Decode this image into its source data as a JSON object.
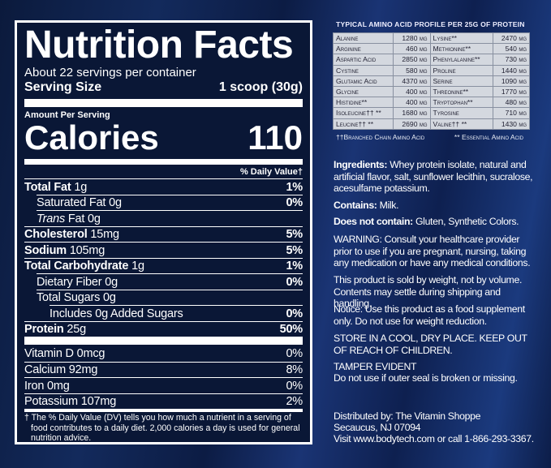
{
  "nutrition": {
    "title": "Nutrition Facts",
    "servings": "About 22 servings per container",
    "serving_size_label": "Serving Size",
    "serving_size_value": "1 scoop (30g)",
    "amount_per_serving": "Amount Per Serving",
    "calories_label": "Calories",
    "calories_value": "110",
    "dv_header": "% Daily Value†",
    "rows": [
      {
        "name": "Total Fat",
        "amount": "1g",
        "dv": "1%"
      },
      {
        "name": "Saturated Fat 0g",
        "dv": "0%"
      },
      {
        "name": "Trans",
        "amount": "Fat 0g"
      },
      {
        "name": "Cholesterol",
        "amount": "15mg",
        "dv": "5%"
      },
      {
        "name": "Sodium",
        "amount": "105mg",
        "dv": "5%"
      },
      {
        "name": "Total Carbohydrate",
        "amount": "1g",
        "dv": "1%"
      },
      {
        "name": "Dietary Fiber 0g",
        "dv": "0%"
      },
      {
        "name": "Total Sugars 0g"
      },
      {
        "name": "Includes 0g Added Sugars",
        "dv": "0%"
      },
      {
        "name": "Protein",
        "amount": "25g",
        "dv": "50%"
      },
      {
        "name": "Vitamin D 0mcg",
        "dv": "0%"
      },
      {
        "name": "Calcium 92mg",
        "dv": "8%"
      },
      {
        "name": "Iron 0mg",
        "dv": "0%"
      },
      {
        "name": "Potassium 107mg",
        "dv": "2%"
      }
    ],
    "footnote": "† The % Daily Value (DV) tells you how much a nutrient in a serving of food contributes to a daily diet. 2,000 calories a day is used for general nutrition advice."
  },
  "amino": {
    "title": "Typical Amino Acid Profile per 25g of Protein",
    "rows": [
      [
        "Alanine",
        "1280 mg",
        "Lysine**",
        "2470 mg"
      ],
      [
        "Arginine",
        "460 mg",
        "Methionine**",
        "540 mg"
      ],
      [
        "Aspartic Acid",
        "2850 mg",
        "Phenylalanine**",
        "730 mg"
      ],
      [
        "Cystine",
        "580 mg",
        "Proline",
        "1440 mg"
      ],
      [
        "Glutamic Acid",
        "4370 mg",
        "Serine",
        "1090 mg"
      ],
      [
        "Glycine",
        "400 mg",
        "Threonine**",
        "1770 mg"
      ],
      [
        "Histidine**",
        "400 mg",
        "Tryptophan**",
        "480 mg"
      ],
      [
        "Isoleucine†† **",
        "1680 mg",
        "Tyrosine",
        "710 mg"
      ],
      [
        "Leucine†† **",
        "2690 mg",
        "Valine†† **",
        "1430 mg"
      ]
    ],
    "footnote_bcaa": "††Branched Chain Amino Acid",
    "footnote_essential": "** Essential Amino Acid"
  },
  "info": {
    "ingredients_label": "Ingredients:",
    "ingredients": "Whey protein isolate, natural and artificial flavor, salt, sunflower lecithin, sucralose, acesulfame potassium.",
    "contains_label": "Contains:",
    "contains": "Milk.",
    "not_contain_label": "Does not contain:",
    "not_contain": "Gluten, Synthetic Colors.",
    "warning": "WARNING: Consult your healthcare provider prior to use if you are pregnant, nursing, taking any medication or have any medical conditions.",
    "weight": "This product is sold by weight, not by volume. Contents may settle during shipping and handling.",
    "notice": "Notice: Use this product as a food supplement only. Do not use for weight reduction.",
    "store": "STORE IN A COOL, DRY PLACE. KEEP OUT OF REACH OF CHILDREN.",
    "tamper_title": "TAMPER EVIDENT",
    "tamper": "Do not use if outer seal is broken or missing.",
    "distributed": "Distributed by: The Vitamin Shoppe",
    "address": "Secaucus, NJ 07094",
    "visit": "Visit www.bodytech.com or call 1-866-293-3367."
  }
}
